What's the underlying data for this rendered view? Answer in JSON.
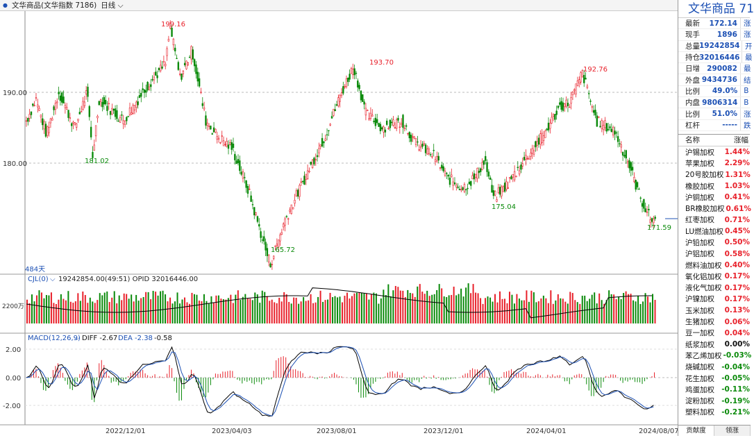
{
  "topbar": {
    "instrument": "文华商品(文华指数 7186)",
    "period": "日线"
  },
  "main": {
    "y_ticks": [
      "190.00",
      "180.00"
    ],
    "annotations": {
      "high1": "199.16",
      "low1": "181.02",
      "high2": "193.70",
      "low2": "165.72",
      "high3": "192.76",
      "low3": "175.04",
      "last": "171.59"
    },
    "days_label": "484天"
  },
  "vol": {
    "label": "CJL(0)",
    "values": "19242854.00(49:51)  OPID 32016446.00",
    "scale": "2200万"
  },
  "macd": {
    "label": "MACD(12,26,9)",
    "diff": "DIFF -2.67",
    "dea": "DEA -2.38",
    "macd_value": "-0.58",
    "ticks": [
      "2.00",
      "0.00",
      "-2.00"
    ]
  },
  "xaxis": {
    "labels": [
      "2022/12/01",
      "2023/04/03",
      "2023/08/01",
      "2023/12/01",
      "2024/04/01",
      "2024/08/07"
    ]
  },
  "quote": {
    "title": "文华商品 71",
    "rows": [
      {
        "k": "最新",
        "v": "172.14",
        "s": "涨"
      },
      {
        "k": "现手",
        "v": "1896",
        "s": "涨"
      },
      {
        "k": "总量",
        "v": "19242854",
        "s": "开"
      },
      {
        "k": "持仓",
        "v": "32016446",
        "s": "最"
      },
      {
        "k": "日增",
        "v": "290082",
        "s": "最"
      },
      {
        "k": "外盘",
        "v": "9434736",
        "s": "结"
      },
      {
        "k": "比例",
        "v": "49.0%",
        "s": "B"
      },
      {
        "k": "内盘",
        "v": "9806314",
        "s": "B"
      },
      {
        "k": "比例",
        "v": "51.0%",
        "s": "涨"
      },
      {
        "k": "杠杆",
        "v": "-----",
        "s": "跌"
      }
    ]
  },
  "products": {
    "header": {
      "name": "名称",
      "chg": "涨幅"
    },
    "rows": [
      {
        "name": "沪锡加权",
        "chg": "1.44%",
        "dir": "up"
      },
      {
        "name": "苹果加权",
        "chg": "2.29%",
        "dir": "up"
      },
      {
        "name": "20号胶加权",
        "chg": "1.31%",
        "dir": "up"
      },
      {
        "name": "橡胶加权",
        "chg": "1.03%",
        "dir": "up"
      },
      {
        "name": "沪铜加权",
        "chg": "0.41%",
        "dir": "up"
      },
      {
        "name": "BR橡胶加权",
        "chg": "0.61%",
        "dir": "up"
      },
      {
        "name": "红枣加权",
        "chg": "0.71%",
        "dir": "up"
      },
      {
        "name": "LU燃油加权",
        "chg": "0.45%",
        "dir": "up"
      },
      {
        "name": "沪铅加权",
        "chg": "0.50%",
        "dir": "up"
      },
      {
        "name": "沪铝加权",
        "chg": "0.58%",
        "dir": "up"
      },
      {
        "name": "燃料油加权",
        "chg": "0.40%",
        "dir": "up"
      },
      {
        "name": "氧化铝加权",
        "chg": "0.17%",
        "dir": "up"
      },
      {
        "name": "液化气加权",
        "chg": "0.17%",
        "dir": "up"
      },
      {
        "name": "沪镍加权",
        "chg": "0.17%",
        "dir": "up"
      },
      {
        "name": "玉米加权",
        "chg": "0.13%",
        "dir": "up"
      },
      {
        "name": "生猪加权",
        "chg": "0.06%",
        "dir": "up"
      },
      {
        "name": "豆一加权",
        "chg": "0.04%",
        "dir": "up"
      },
      {
        "name": "纸浆加权",
        "chg": "0.00%",
        "dir": "flat"
      },
      {
        "name": "苯乙烯加权",
        "chg": "-0.03%",
        "dir": "dn"
      },
      {
        "name": "烧碱加权",
        "chg": "-0.04%",
        "dir": "dn"
      },
      {
        "name": "花生加权",
        "chg": "-0.05%",
        "dir": "dn"
      },
      {
        "name": "鸡蛋加权",
        "chg": "-0.11%",
        "dir": "dn"
      },
      {
        "name": "淀粉加权",
        "chg": "-0.19%",
        "dir": "dn"
      },
      {
        "name": "塑料加权",
        "chg": "-0.21%",
        "dir": "dn"
      }
    ]
  },
  "tabs": [
    "贡献度",
    "领涨"
  ],
  "colors": {
    "up": "#e8202a",
    "down": "#0a8a0a",
    "axis": "#1c50b4"
  },
  "series": {
    "anchors": [
      [
        0,
        186
      ],
      [
        12,
        189
      ],
      [
        25,
        184
      ],
      [
        40,
        190
      ],
      [
        60,
        185
      ],
      [
        75,
        190
      ],
      [
        82,
        181.02
      ],
      [
        90,
        189
      ],
      [
        120,
        186
      ],
      [
        150,
        191
      ],
      [
        172,
        194
      ],
      [
        178,
        199.16
      ],
      [
        190,
        192
      ],
      [
        205,
        196
      ],
      [
        222,
        186
      ],
      [
        235,
        184
      ],
      [
        255,
        182
      ],
      [
        275,
        176
      ],
      [
        298,
        167
      ],
      [
        302,
        165.72
      ],
      [
        320,
        172
      ],
      [
        345,
        178
      ],
      [
        370,
        184
      ],
      [
        390,
        190
      ],
      [
        405,
        193.7
      ],
      [
        420,
        187
      ],
      [
        440,
        185
      ],
      [
        465,
        186
      ],
      [
        480,
        183
      ],
      [
        505,
        181
      ],
      [
        520,
        178
      ],
      [
        540,
        176.5
      ],
      [
        555,
        178
      ],
      [
        567,
        180.5
      ],
      [
        578,
        175.04
      ],
      [
        595,
        177
      ],
      [
        620,
        181
      ],
      [
        640,
        184
      ],
      [
        660,
        188
      ],
      [
        672,
        188.5
      ],
      [
        688,
        192.76
      ],
      [
        705,
        186
      ],
      [
        728,
        184.5
      ],
      [
        745,
        180
      ],
      [
        760,
        175
      ],
      [
        772,
        172.14
      ]
    ]
  }
}
